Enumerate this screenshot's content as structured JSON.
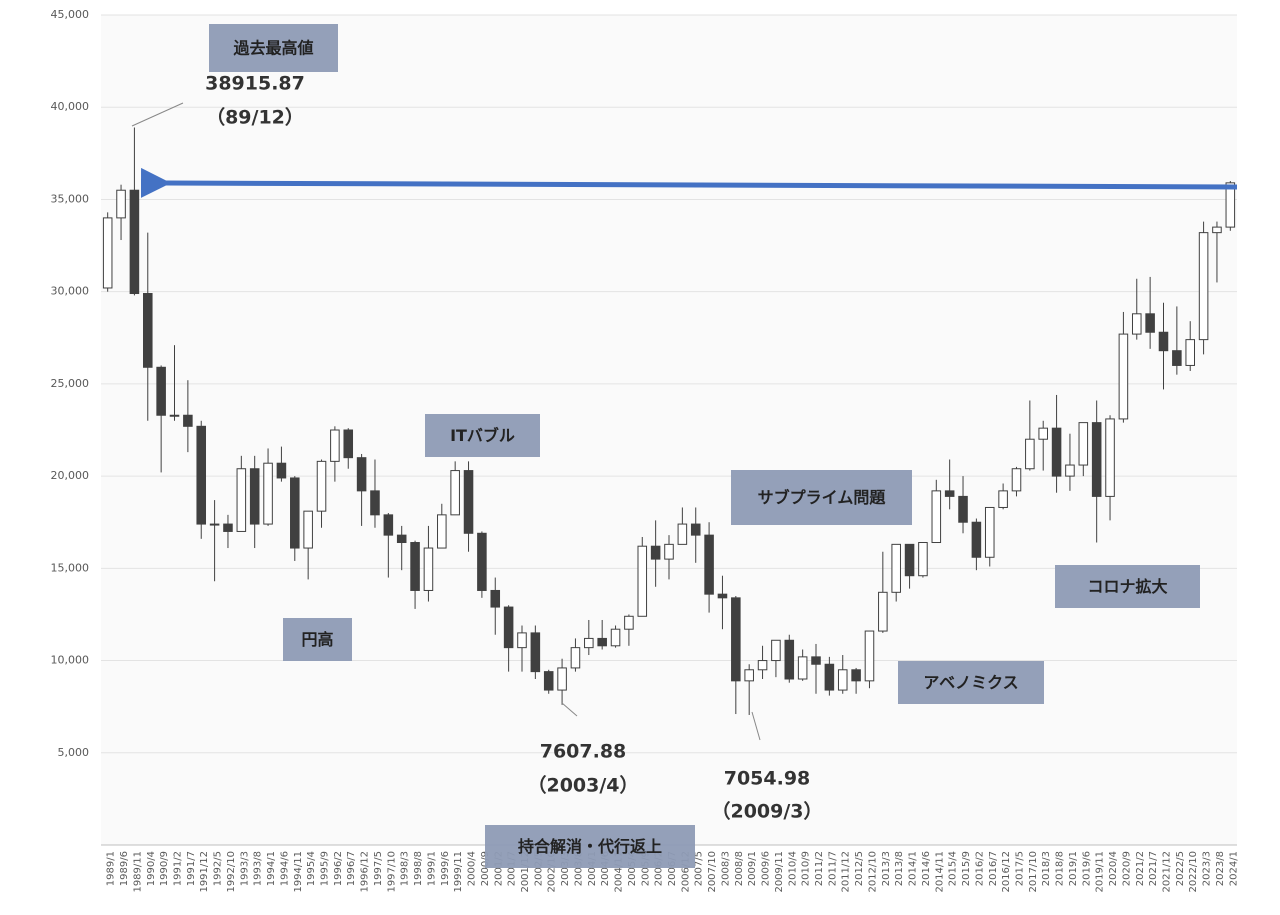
{
  "chart_data": {
    "type": "candlestick",
    "categories": [
      "1989/1",
      "1989/6",
      "1989/11",
      "1990/4",
      "1990/9",
      "1991/2",
      "1991/7",
      "1991/12",
      "1992/5",
      "1992/10",
      "1993/3",
      "1993/8",
      "1994/1",
      "1994/6",
      "1994/11",
      "1995/4",
      "1995/9",
      "1996/2",
      "1996/7",
      "1996/12",
      "1997/5",
      "1997/10",
      "1998/3",
      "1998/8",
      "1999/1",
      "1999/6",
      "1999/11",
      "2000/4",
      "2000/9",
      "2001/2",
      "2001/7",
      "2001/12",
      "2002/5",
      "2002/10",
      "2003/3",
      "2003/8",
      "2004/1",
      "2004/6",
      "2004/11",
      "2005/4",
      "2005/9",
      "2006/2",
      "2006/7",
      "2006/12",
      "2007/5",
      "2007/10",
      "2008/3",
      "2008/8",
      "2009/1",
      "2009/6",
      "2009/11",
      "2010/4",
      "2010/9",
      "2011/2",
      "2011/7",
      "2011/12",
      "2012/5",
      "2012/10",
      "2013/3",
      "2013/8",
      "2014/1",
      "2014/6",
      "2014/11",
      "2015/4",
      "2015/9",
      "2016/2",
      "2016/7",
      "2016/12",
      "2017/5",
      "2017/10",
      "2018/3",
      "2018/8",
      "2019/1",
      "2019/6",
      "2019/11",
      "2020/4",
      "2020/9",
      "2021/2",
      "2021/7",
      "2021/12",
      "2022/5",
      "2022/10",
      "2023/3",
      "2023/8",
      "2024/1"
    ],
    "open": [
      30200,
      34000,
      35500,
      29900,
      25900,
      23300,
      23300,
      22700,
      17400,
      17400,
      17000,
      20400,
      17400,
      20700,
      19900,
      16100,
      18100,
      20800,
      22500,
      21000,
      19200,
      17900,
      16800,
      16400,
      13800,
      16100,
      17900,
      20300,
      16900,
      13800,
      12900,
      10700,
      11500,
      9400,
      8400,
      9600,
      10700,
      11200,
      10800,
      11700,
      12400,
      16200,
      15500,
      16300,
      17400,
      16800,
      13600,
      13400,
      8900,
      9500,
      10000,
      11100,
      9000,
      10200,
      9800,
      8400,
      9500,
      8900,
      11600,
      13700,
      16300,
      14600,
      16400,
      19200,
      18900,
      17500,
      15600,
      18300,
      19200,
      20400,
      22000,
      22600,
      20000,
      20600,
      22900,
      18900,
      23100,
      27700,
      28800,
      27800,
      26800,
      26000,
      27400,
      33200,
      33500
    ],
    "high": [
      34300,
      35800,
      38900,
      33200,
      26000,
      27100,
      25200,
      23000,
      18700,
      17900,
      21100,
      21100,
      21500,
      21600,
      20000,
      18100,
      20900,
      22700,
      22600,
      21200,
      20900,
      18000,
      17300,
      16500,
      17300,
      18500,
      20800,
      20800,
      17000,
      14500,
      13000,
      11900,
      11900,
      9500,
      10100,
      11200,
      12200,
      12200,
      11900,
      12500,
      16700,
      17600,
      16800,
      18300,
      18300,
      17500,
      14600,
      13500,
      9800,
      10800,
      11100,
      11400,
      10600,
      10900,
      10200,
      10300,
      9600,
      11600,
      15900,
      16300,
      16300,
      16400,
      19800,
      20900,
      20000,
      17700,
      18300,
      19600,
      20500,
      24100,
      23000,
      24400,
      22300,
      22900,
      24100,
      23300,
      28900,
      30700,
      30800,
      29400,
      29200,
      28400,
      33800,
      33800,
      36000
    ],
    "low": [
      30000,
      32800,
      29800,
      23000,
      20200,
      23000,
      21300,
      16600,
      14300,
      16100,
      17000,
      16100,
      17300,
      19700,
      15400,
      14400,
      17200,
      19700,
      20400,
      17300,
      17200,
      14500,
      14900,
      12800,
      13200,
      16100,
      17900,
      15900,
      13400,
      11400,
      9400,
      9400,
      9000,
      8200,
      7600,
      9400,
      10300,
      10600,
      10700,
      10800,
      12400,
      14000,
      14400,
      16300,
      15300,
      12600,
      11700,
      7100,
      7050,
      9000,
      9100,
      8800,
      8900,
      8200,
      8100,
      8200,
      8200,
      8500,
      11500,
      13200,
      13900,
      14500,
      16400,
      18200,
      16900,
      14900,
      15100,
      18200,
      18900,
      20300,
      20300,
      19100,
      19200,
      20000,
      16400,
      17600,
      22900,
      27400,
      26900,
      24700,
      25500,
      25700,
      26600,
      30500,
      33300
    ],
    "close": [
      34000,
      35500,
      29900,
      25900,
      23300,
      23300,
      22700,
      17400,
      17400,
      17000,
      20400,
      17400,
      20700,
      19900,
      16100,
      18100,
      20800,
      22500,
      21000,
      19200,
      17900,
      16800,
      16400,
      13800,
      16100,
      17900,
      20300,
      16900,
      13800,
      12900,
      10700,
      11500,
      9400,
      8400,
      9600,
      10700,
      11200,
      10800,
      11700,
      12400,
      16200,
      15500,
      16300,
      17400,
      16800,
      13600,
      13400,
      8900,
      9500,
      10000,
      11100,
      9000,
      10200,
      9800,
      8400,
      9500,
      8900,
      11600,
      13700,
      16300,
      14600,
      16400,
      19200,
      18900,
      17500,
      15600,
      18300,
      19200,
      20400,
      22000,
      22600,
      20000,
      20600,
      22900,
      18900,
      23100,
      27700,
      28800,
      27800,
      26800,
      26000,
      27400,
      33200,
      33500,
      35900
    ],
    "color": "#404040",
    "ylim": [
      0,
      45000
    ],
    "yticks": [
      {
        "value": 5000,
        "label": "5,000"
      },
      {
        "value": 10000,
        "label": "10,000"
      },
      {
        "value": 15000,
        "label": "15,000"
      },
      {
        "value": 20000,
        "label": "20,000"
      },
      {
        "value": 25000,
        "label": "25,000"
      },
      {
        "value": 30000,
        "label": "30,000"
      },
      {
        "value": 35000,
        "label": "35,000"
      },
      {
        "value": 40000,
        "label": "40,000"
      },
      {
        "value": 45000,
        "label": "45,000"
      }
    ],
    "grid": true,
    "annotations": [
      "過去最高値",
      "ITバブル",
      "サブプライム問題",
      "円高",
      "アベノミクス",
      "コロナ拡大",
      "持合解消・代行返上"
    ],
    "peak": {
      "value": 38915.87,
      "date": "（89/12）"
    },
    "lows": [
      {
        "value": 7607.88,
        "date": "（2003/4）"
      },
      {
        "value": 7054.98,
        "date": "（2009/3）"
      }
    ]
  }
}
